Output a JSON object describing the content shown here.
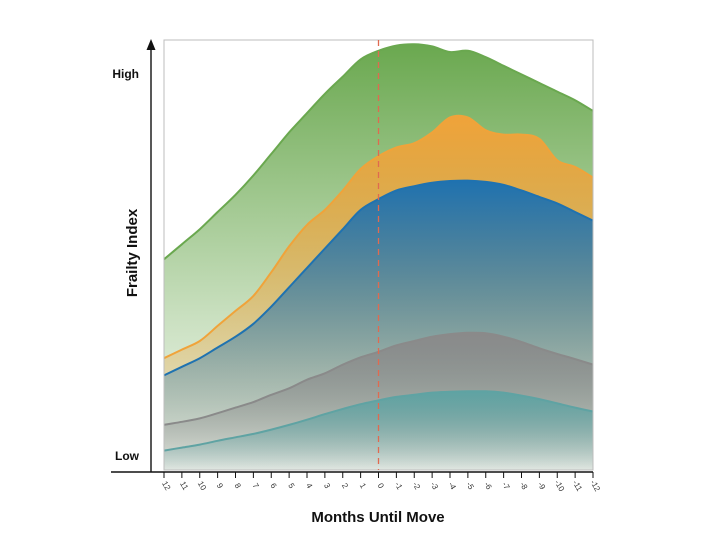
{
  "chart_data": {
    "type": "area",
    "xlabel": "Months Until Move",
    "ylabel": "Frailty Index",
    "y_levels": {
      "low": "Low",
      "high": "High"
    },
    "x": [
      12,
      11,
      10,
      9,
      8,
      7,
      6,
      5,
      4,
      3,
      2,
      1,
      0,
      -1,
      -2,
      -3,
      -4,
      -5,
      -6,
      -7,
      -8,
      -9,
      -10,
      -11,
      -12
    ],
    "x_tick_labels": [
      "12",
      "11",
      "10",
      "9",
      "8",
      "7",
      "6",
      "5",
      "4",
      "3",
      "2",
      "1",
      "0",
      "-1",
      "-2",
      "-3",
      "-4",
      "-5",
      "-6",
      "-7",
      "-8",
      "-9",
      "-10",
      "-11",
      "-12"
    ],
    "xlim": [
      12,
      -12
    ],
    "ylim": [
      0,
      100
    ],
    "reference_line_x": 0,
    "grid": false,
    "series": [
      {
        "color": "#6aa84f",
        "values": [
          49,
          52.5,
          56,
          60,
          64,
          68.5,
          73.5,
          78.5,
          83,
          87.5,
          91.5,
          95.5,
          97.5,
          98.7,
          99,
          98.5,
          97.2,
          97.5,
          96,
          94,
          92,
          90,
          88,
          86,
          83.5
        ]
      },
      {
        "color": "#f0a33a",
        "values": [
          26,
          28,
          30,
          33.5,
          37,
          40.5,
          46,
          52,
          57,
          60.5,
          65,
          70,
          73,
          75,
          76,
          78.5,
          82,
          82,
          79,
          78,
          78,
          77,
          72,
          70.5,
          68
        ]
      },
      {
        "color": "#1f72b0",
        "values": [
          22,
          24,
          26,
          28.5,
          31,
          34,
          38,
          42.5,
          47,
          51.5,
          56,
          60.5,
          63,
          65,
          66,
          66.8,
          67.2,
          67.3,
          67,
          66.3,
          65,
          63.5,
          62,
          60,
          58
        ]
      },
      {
        "color": "#8a8a8a",
        "values": [
          10.5,
          11.2,
          12,
          13.2,
          14.5,
          15.8,
          17.5,
          19,
          21,
          22.5,
          24.5,
          26.2,
          27.5,
          29,
          30,
          31,
          31.6,
          31.9,
          31.8,
          31,
          29.8,
          28.3,
          27,
          25.8,
          24.5
        ]
      },
      {
        "color": "#5fa3a3",
        "values": [
          4.5,
          5.2,
          5.9,
          6.8,
          7.6,
          8.4,
          9.4,
          10.5,
          11.7,
          13,
          14.2,
          15.3,
          16.2,
          17,
          17.5,
          18,
          18.2,
          18.3,
          18.3,
          18,
          17.3,
          16.5,
          15.5,
          14.5,
          13.6
        ]
      }
    ]
  }
}
